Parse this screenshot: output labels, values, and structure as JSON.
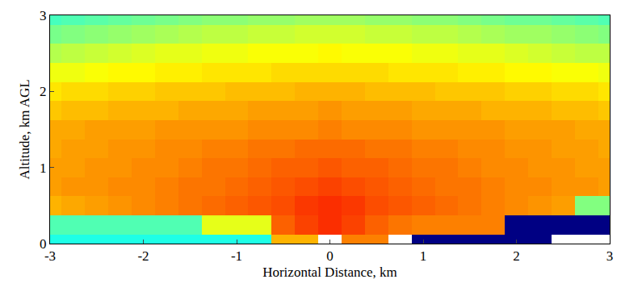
{
  "chart_data": {
    "type": "heatmap",
    "x_label": "Horizontal Distance, km",
    "y_label": "Altitude, km AGL",
    "color": "jet",
    "xlim": [
      -3,
      3
    ],
    "ylim": [
      0,
      3
    ],
    "xticks": [
      -3,
      -2,
      -1,
      0,
      1,
      2,
      3
    ],
    "yticks": [
      0,
      1,
      2,
      3
    ],
    "zlim": [
      0,
      10
    ],
    "x": [
      -3,
      -2.75,
      -2.5,
      -2.25,
      -2,
      -1.75,
      -1.5,
      -1.25,
      -1,
      -0.75,
      -0.5,
      -0.25,
      0,
      0.25,
      0.5,
      0.75,
      1,
      1.25,
      1.5,
      1.75,
      2,
      2.25,
      2.5,
      2.75,
      3
    ],
    "y": [
      0,
      0.25,
      0.5,
      0.75,
      1,
      1.25,
      1.5,
      1.75,
      2,
      2.25,
      2.5,
      2.75,
      3
    ],
    "z": [
      [
        4.0,
        4.0,
        4.0,
        4.0,
        4.0,
        4.0,
        4.0,
        4.0,
        4.0,
        4.0,
        7.0,
        7.0,
        null,
        7.5,
        7.5,
        null,
        0,
        0,
        0,
        0,
        0,
        0,
        null,
        null,
        null
      ],
      [
        4.5,
        4.5,
        4.5,
        4.5,
        4.5,
        4.5,
        4.5,
        6.0,
        6.0,
        6.0,
        7.8,
        8.1,
        8.3,
        8.1,
        7.8,
        7.6,
        7.5,
        7.5,
        7.5,
        7.5,
        0,
        0,
        0,
        0,
        0
      ],
      [
        7.0,
        7.1,
        7.2,
        7.3,
        7.4,
        7.5,
        7.6,
        7.7,
        7.8,
        7.9,
        8.0,
        8.2,
        8.3,
        8.2,
        8.0,
        7.9,
        7.8,
        7.7,
        7.6,
        7.5,
        7.4,
        7.3,
        7.2,
        5.0,
        5.0
      ],
      [
        7.2,
        7.3,
        7.3,
        7.4,
        7.4,
        7.5,
        7.6,
        7.6,
        7.7,
        7.8,
        7.9,
        8.0,
        8.1,
        8.0,
        7.9,
        7.8,
        7.7,
        7.6,
        7.6,
        7.5,
        7.4,
        7.4,
        7.3,
        7.3,
        7.2
      ],
      [
        7.2,
        7.2,
        7.3,
        7.3,
        7.4,
        7.4,
        7.5,
        7.6,
        7.6,
        7.7,
        7.8,
        7.8,
        7.9,
        7.8,
        7.8,
        7.7,
        7.6,
        7.6,
        7.5,
        7.4,
        7.4,
        7.3,
        7.3,
        7.2,
        7.2
      ],
      [
        7.1,
        7.2,
        7.2,
        7.3,
        7.3,
        7.4,
        7.4,
        7.5,
        7.5,
        7.6,
        7.6,
        7.7,
        7.7,
        7.7,
        7.6,
        7.6,
        7.5,
        7.5,
        7.4,
        7.4,
        7.3,
        7.3,
        7.2,
        7.2,
        7.1
      ],
      [
        7.1,
        7.1,
        7.2,
        7.2,
        7.2,
        7.3,
        7.3,
        7.3,
        7.3,
        7.4,
        7.4,
        7.4,
        7.5,
        7.4,
        7.4,
        7.4,
        7.3,
        7.3,
        7.3,
        7.3,
        7.2,
        7.2,
        7.2,
        7.1,
        7.1
      ],
      [
        6.8,
        6.9,
        6.9,
        7.0,
        7.0,
        7.0,
        7.1,
        7.1,
        7.1,
        7.2,
        7.2,
        7.2,
        7.3,
        7.2,
        7.2,
        7.2,
        7.1,
        7.1,
        7.1,
        7.0,
        7.0,
        7.0,
        6.9,
        6.9,
        6.8
      ],
      [
        6.5,
        6.6,
        6.6,
        6.7,
        6.7,
        6.8,
        6.8,
        6.8,
        6.9,
        6.9,
        6.9,
        7.0,
        7.0,
        7.0,
        6.9,
        6.9,
        6.9,
        6.8,
        6.8,
        6.8,
        6.7,
        6.7,
        6.6,
        6.6,
        6.5
      ],
      [
        6.1,
        6.1,
        6.2,
        6.3,
        6.3,
        6.4,
        6.4,
        6.5,
        6.5,
        6.5,
        6.6,
        6.6,
        6.6,
        6.6,
        6.6,
        6.5,
        6.5,
        6.5,
        6.4,
        6.4,
        6.3,
        6.3,
        6.2,
        6.2,
        6.1
      ],
      [
        5.5,
        5.6,
        5.7,
        5.8,
        5.9,
        6.0,
        6.0,
        6.1,
        6.1,
        6.2,
        6.2,
        6.2,
        6.3,
        6.2,
        6.2,
        6.2,
        6.1,
        6.1,
        6.0,
        6.0,
        5.9,
        5.8,
        5.7,
        5.6,
        5.6
      ],
      [
        4.9,
        5.0,
        5.1,
        5.2,
        5.3,
        5.4,
        5.5,
        5.6,
        5.6,
        5.7,
        5.7,
        5.8,
        5.8,
        5.8,
        5.7,
        5.7,
        5.6,
        5.6,
        5.5,
        5.4,
        5.3,
        5.3,
        5.2,
        5.1,
        5.0
      ],
      [
        4.4,
        4.5,
        4.6,
        4.7,
        4.8,
        4.9,
        5.0,
        5.1,
        5.1,
        5.2,
        5.2,
        5.3,
        5.3,
        5.3,
        5.2,
        5.2,
        5.1,
        5.1,
        5.0,
        4.9,
        4.8,
        4.8,
        4.7,
        4.6,
        4.5
      ]
    ]
  }
}
